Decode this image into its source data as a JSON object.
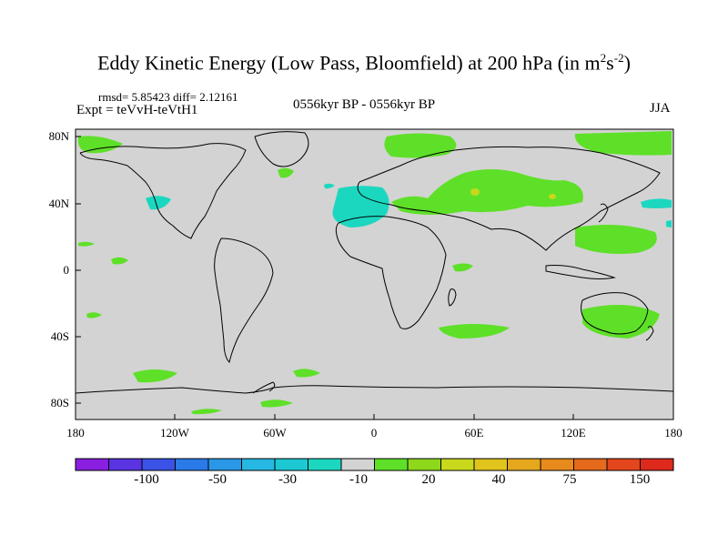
{
  "title": {
    "main": "Eddy Kinetic Energy (Low Pass, Bloomfield) at 200 hPa (in m",
    "sup1": "2",
    "mid": "s",
    "sup2": "-2",
    "end": ")"
  },
  "stats": {
    "line": "rmsd= 5.85423 diff= 2.12161"
  },
  "experiment": "Expt = teVvH-teVtH1",
  "period": "0556kyr BP - 0556kyr BP",
  "season": "JJA",
  "map": {
    "lat_labels": [
      "80N",
      "40N",
      "0",
      "40S",
      "80S"
    ],
    "lon_labels": [
      "180",
      "120W",
      "60W",
      "0",
      "60E",
      "120E",
      "180"
    ],
    "colors": {
      "background": "#d3d3d3",
      "positive_anomaly": "#5ee028",
      "negative_anomaly": "#1cd7c0",
      "strong_positive": "#c8d81c"
    }
  },
  "colorbar": {
    "colors": [
      "#8a1fe0",
      "#5a34e3",
      "#3a52e6",
      "#2a7ae8",
      "#2a98e6",
      "#26b8e2",
      "#1cc8d2",
      "#1cd7c0",
      "#d3d3d3",
      "#5ee028",
      "#8ed81c",
      "#c8d81c",
      "#e0c41c",
      "#e5a71c",
      "#e88a1c",
      "#e66a1c",
      "#e3461c",
      "#dd2a1c"
    ],
    "labels": [
      "-100",
      "-50",
      "-30",
      "-10",
      "20",
      "40",
      "75",
      "150"
    ]
  }
}
